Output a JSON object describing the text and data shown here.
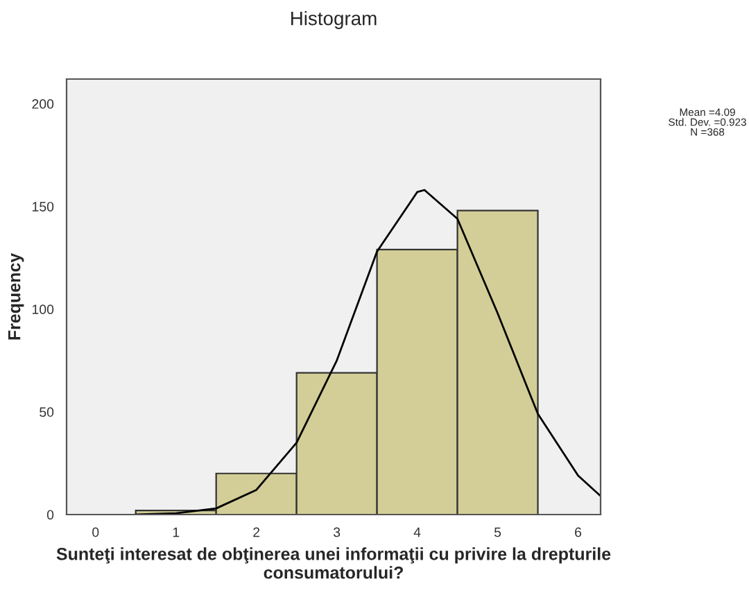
{
  "chart_data": {
    "type": "histogram",
    "title": "Histogram",
    "xlabel": "Sunteţi interesat de obţinerea unei informaţii cu privire la drepturile consumatorului?",
    "ylabel": "Frequency",
    "bins": [
      0.5,
      1.5,
      2.5,
      3.5,
      4.5,
      5.5
    ],
    "values": [
      2,
      20,
      69,
      129,
      148
    ],
    "color": "#d3ce97",
    "series": [
      {
        "type": "line",
        "color": "#000000",
        "x": [
          0.5,
          1,
          1.5,
          2,
          2.5,
          3,
          3.5,
          4,
          4.09,
          4.5,
          5,
          5.5,
          6,
          6.28
        ],
        "values": [
          0,
          0.6,
          3,
          12,
          35,
          75,
          128,
          157,
          158,
          144,
          98,
          49,
          19,
          9
        ]
      }
    ],
    "annotations": [
      "Mean =4.09\nStd. Dev. =0.923\nN =368"
    ],
    "xlim": [
      -0.36,
      6.28
    ],
    "ylim": [
      0,
      212
    ],
    "xticks": [
      0,
      1,
      2,
      3,
      4,
      5,
      6
    ],
    "yticks": [
      0,
      50,
      100,
      150,
      200
    ],
    "grid": false,
    "legend": false
  }
}
